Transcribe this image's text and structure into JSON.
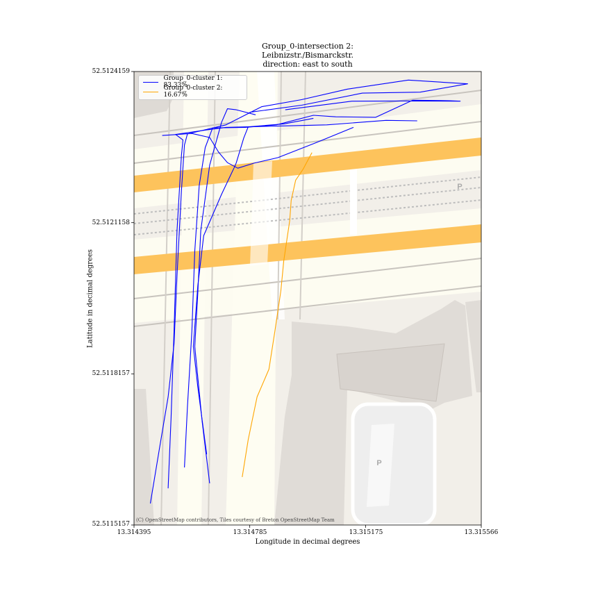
{
  "title": [
    "Group_0-intersection 2:",
    "Leibnizstr./Bismarckstr.",
    "direction: east to south"
  ],
  "xlabel": "Longitude in decimal degrees",
  "ylabel": "Latitude in decimal degrees",
  "attribution": "(C) OpenStreetMap contributors, Tiles courtesy of Breton OpenStreetMap Team",
  "x_ticks": [
    "13.314395",
    "13.314785",
    "13.315175",
    "13.315566"
  ],
  "y_ticks": [
    "52.5124159",
    "52.5121158",
    "52.5118157",
    "52.5115157"
  ],
  "legend": [
    {
      "label": "Group_0-cluster 1: 83.33%",
      "color": "#0000ff"
    },
    {
      "label": "Group_0-cluster 2: 16.67%",
      "color": "#ffa500"
    }
  ],
  "map_colors": {
    "background": "#f2efe9",
    "major_road": "#fdc35c",
    "minor_road": "#fefdf2",
    "building": "#e0dcd7",
    "parking": "#eeeeee"
  },
  "map_icons": [
    "parking-icon",
    "parking-icon"
  ],
  "chart_data": {
    "type": "line",
    "xlim": [
      13.314395,
      13.315566
    ],
    "ylim": [
      52.5115157,
      52.5124159
    ],
    "series": [
      {
        "name": "Group_0-cluster 1: 83.33%",
        "color": "#0000ff",
        "paths": [
          [
            [
              13.31445,
              52.5115585
            ],
            [
              13.31448,
              52.511665
            ],
            [
              13.31451,
              52.51177
            ],
            [
              13.31453,
              52.511875
            ],
            [
              13.31454,
              52.51201
            ],
            [
              13.314555,
              52.51218
            ],
            [
              13.314565,
              52.51227
            ],
            [
              13.314575,
              52.512292
            ],
            [
              13.314705,
              52.51231
            ],
            [
              13.314825,
              52.512346
            ],
            [
              13.31496,
              52.51236
            ],
            [
              13.315115,
              52.512381
            ],
            [
              13.31532,
              52.512399
            ],
            [
              13.31552,
              52.5123915
            ],
            [
              13.31536,
              52.512375
            ],
            [
              13.315165,
              52.512373
            ],
            [
              13.31496,
              52.512349
            ],
            [
              13.314785,
              52.512335
            ]
          ],
          [
            [
              13.31451,
              52.5115885
            ],
            [
              13.31452,
              52.51173
            ],
            [
              13.31453,
              52.5119
            ],
            [
              13.31454,
              52.5121
            ],
            [
              13.314555,
              52.51225
            ],
            [
              13.31456,
              52.51228
            ],
            [
              13.314535,
              52.512291
            ],
            [
              13.31464,
              52.5123
            ],
            [
              13.314705,
              52.512305
            ],
            [
              13.3149,
              52.512308
            ],
            [
              13.315045,
              52.51231
            ],
            [
              13.315245,
              52.512319
            ],
            [
              13.31535,
              52.512318
            ]
          ],
          [
            [
              13.314565,
              52.51163
            ],
            [
              13.314575,
              52.51175
            ],
            [
              13.31459,
              52.5119
            ],
            [
              13.3146,
              52.51206
            ],
            [
              13.314615,
              52.51219
            ],
            [
              13.314635,
              52.512265
            ],
            [
              13.31466,
              52.512304
            ],
            [
              13.31477,
              52.512305
            ],
            [
              13.314875,
              52.51231
            ],
            [
              13.315,
              52.512329
            ],
            [
              13.315075,
              52.512326
            ],
            [
              13.31521,
              52.512325
            ],
            [
              13.315335,
              52.512359
            ],
            [
              13.31546,
              52.512358
            ],
            [
              13.315495,
              52.512357
            ],
            [
              13.3153,
              52.5123575
            ],
            [
              13.31513,
              52.512357
            ],
            [
              13.314905,
              52.51234
            ]
          ],
          [
            [
              13.31465,
              52.5115985
            ],
            [
              13.314625,
              52.51172
            ],
            [
              13.3146,
              52.51187
            ],
            [
              13.31461,
              52.511975
            ],
            [
              13.31462,
              52.5121
            ],
            [
              13.31465,
              52.51223
            ],
            [
              13.31469,
              52.512315
            ],
            [
              13.31471,
              52.512342
            ],
            [
              13.31474,
              52.51234
            ],
            [
              13.314805,
              52.51233
            ]
          ],
          [
            [
              13.31464,
              52.511656
            ],
            [
              13.31461,
              52.51179
            ],
            [
              13.314595,
              52.51187
            ],
            [
              13.31461,
              52.51199
            ],
            [
              13.31463,
              52.51209
            ],
            [
              13.31469,
              52.512172
            ],
            [
              13.314735,
              52.512228
            ],
            [
              13.31474,
              52.512235
            ],
            [
              13.314765,
              52.512284
            ],
            [
              13.31478,
              52.512306
            ],
            [
              13.3149,
              52.512312
            ],
            [
              13.315,
              52.512323
            ]
          ],
          [
            [
              13.31449,
              52.512289
            ],
            [
              13.31459,
              52.512293
            ],
            [
              13.31465,
              52.512285
            ],
            [
              13.31468,
              52.512256
            ],
            [
              13.31471,
              52.512235
            ],
            [
              13.314745,
              52.512224
            ],
            [
              13.3148,
              52.512234
            ],
            [
              13.31488,
              52.512245
            ],
            [
              13.31501,
              52.512275
            ],
            [
              13.315135,
              52.512305
            ]
          ]
        ]
      },
      {
        "name": "Group_0-cluster 2: 16.67%",
        "color": "#ffa500",
        "paths": [
          [
            [
              13.31476,
              52.511611
            ],
            [
              13.31478,
              52.511685
            ],
            [
              13.31481,
              52.51177
            ],
            [
              13.31485,
              52.511825
            ],
            [
              13.31487,
              52.5119
            ],
            [
              13.31489,
              52.51198
            ],
            [
              13.3149,
              52.51204
            ],
            [
              13.31492,
              52.51212
            ],
            [
              13.314925,
              52.51216
            ],
            [
              13.31494,
              52.5122
            ],
            [
              13.314965,
              52.512222
            ],
            [
              13.314995,
              52.512255
            ]
          ]
        ]
      }
    ]
  }
}
